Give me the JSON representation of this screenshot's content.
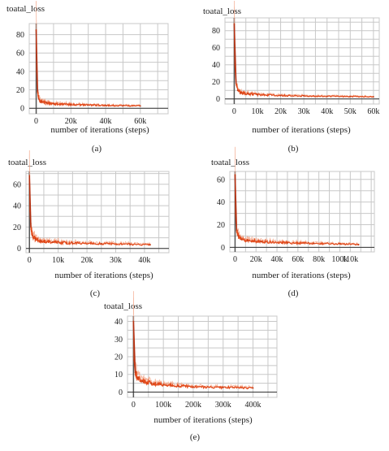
{
  "chart_data": [
    {
      "type": "line",
      "caption": "(a)",
      "title": "toatal_loss",
      "xlabel": "number of iterations (steps)",
      "ylabel": "",
      "xlim": [
        -4000,
        76000
      ],
      "ylim": [
        -6,
        92
      ],
      "xticks": [
        0,
        20000,
        40000,
        60000
      ],
      "xtick_labels": [
        "0",
        "20k",
        "40k",
        "60k"
      ],
      "yticks": [
        0,
        20,
        40,
        60,
        80
      ],
      "ytick_labels": [
        "0",
        "20",
        "40",
        "60",
        "80"
      ],
      "xgrid": [
        0,
        10000,
        20000,
        30000,
        40000,
        50000,
        60000,
        70000
      ],
      "ygrid": [
        0,
        10,
        20,
        30,
        40,
        50,
        60,
        70,
        80
      ],
      "series": [
        {
          "x": [
            0,
            300,
            800,
            1500,
            3000,
            6000,
            10000,
            20000,
            30000,
            40000,
            50000,
            60000
          ],
          "values": [
            85,
            40,
            18,
            10,
            7,
            6,
            5,
            4,
            3.5,
            3,
            2.8,
            2.5
          ]
        }
      ]
    },
    {
      "type": "line",
      "caption": "(b)",
      "title": "toatal_loss",
      "xlabel": "number of iterations (steps)",
      "ylabel": "",
      "xlim": [
        -4000,
        62500
      ],
      "ylim": [
        -6,
        95
      ],
      "xticks": [
        0,
        10000,
        20000,
        30000,
        40000,
        50000,
        60000
      ],
      "xtick_labels": [
        "0",
        "10k",
        "20k",
        "30k",
        "40k",
        "50k",
        "60k"
      ],
      "yticks": [
        0,
        20,
        40,
        60,
        80
      ],
      "ytick_labels": [
        "0",
        "20",
        "40",
        "60",
        "80"
      ],
      "xgrid": [
        0,
        5000,
        10000,
        15000,
        20000,
        25000,
        30000,
        35000,
        40000,
        45000,
        50000,
        55000,
        60000
      ],
      "ygrid": [
        0,
        10,
        20,
        30,
        40,
        50,
        60,
        70,
        80,
        90
      ],
      "series": [
        {
          "x": [
            0,
            300,
            800,
            1500,
            3000,
            6000,
            10000,
            20000,
            30000,
            40000,
            50000,
            60000
          ],
          "values": [
            88,
            40,
            18,
            10,
            7,
            6,
            5,
            4,
            3.5,
            3,
            2.8,
            2.5
          ]
        }
      ]
    },
    {
      "type": "line",
      "caption": "(c)",
      "title": "toatal_loss",
      "xlabel": "number of iterations (steps)",
      "ylabel": "",
      "xlim": [
        -1200,
        48500
      ],
      "ylim": [
        -4,
        72
      ],
      "xticks": [
        0,
        10000,
        20000,
        30000,
        40000
      ],
      "xtick_labels": [
        "0",
        "10k",
        "20k",
        "30k",
        "40k"
      ],
      "yticks": [
        0,
        20,
        40,
        60
      ],
      "ytick_labels": [
        "0",
        "20",
        "40",
        "60"
      ],
      "xgrid": [
        0,
        5000,
        10000,
        15000,
        20000,
        25000,
        30000,
        35000,
        40000,
        45000
      ],
      "ygrid": [
        0,
        10,
        20,
        30,
        40,
        50,
        60,
        70
      ],
      "series": [
        {
          "x": [
            0,
            200,
            500,
            1000,
            2000,
            4000,
            8000,
            15000,
            25000,
            35000,
            42000
          ],
          "values": [
            68,
            35,
            20,
            12,
            9,
            7,
            6,
            5,
            4.5,
            4,
            3.5
          ]
        }
      ]
    },
    {
      "type": "line",
      "caption": "(d)",
      "title": "toatal_loss",
      "xlabel": "number of iterations (steps)",
      "ylabel": "",
      "xlim": [
        -5000,
        133000
      ],
      "ylim": [
        -4,
        67
      ],
      "xticks": [
        0,
        20000,
        40000,
        60000,
        80000,
        100000,
        110000
      ],
      "xtick_labels": [
        "0",
        "20k",
        "40k",
        "60k",
        "80k",
        "100k",
        "110k"
      ],
      "yticks": [
        0,
        20,
        40,
        60
      ],
      "ytick_labels": [
        "0",
        "20",
        "40",
        "60"
      ],
      "xgrid": [
        0,
        10000,
        20000,
        30000,
        40000,
        50000,
        60000,
        70000,
        80000,
        90000,
        100000,
        110000,
        120000,
        130000
      ],
      "ygrid": [
        0,
        10,
        20,
        30,
        40,
        50,
        60
      ],
      "series": [
        {
          "x": [
            0,
            500,
            1500,
            3000,
            6000,
            12000,
            25000,
            50000,
            75000,
            100000,
            118000
          ],
          "values": [
            64,
            30,
            15,
            10,
            7,
            6,
            5,
            4,
            3.5,
            3,
            2.5
          ]
        }
      ]
    },
    {
      "type": "line",
      "caption": "(e)",
      "title": "toatal_loss",
      "xlabel": "number of iterations (steps)",
      "ylabel": "",
      "xlim": [
        -20000,
        480000
      ],
      "ylim": [
        -3,
        43
      ],
      "xticks": [
        0,
        100000,
        200000,
        300000,
        400000
      ],
      "xtick_labels": [
        "0",
        "100k",
        "200k",
        "300k",
        "400k"
      ],
      "yticks": [
        0,
        10,
        20,
        30,
        40
      ],
      "ytick_labels": [
        "0",
        "10",
        "20",
        "30",
        "40"
      ],
      "xgrid": [
        0,
        50000,
        100000,
        150000,
        200000,
        250000,
        300000,
        350000,
        400000,
        450000
      ],
      "ygrid": [
        0,
        5,
        10,
        15,
        20,
        25,
        30,
        35,
        40
      ],
      "series": [
        {
          "x": [
            0,
            2000,
            6000,
            15000,
            30000,
            60000,
            100000,
            150000,
            200000,
            300000,
            400000
          ],
          "values": [
            40,
            18,
            11,
            8,
            6,
            5,
            4,
            3.5,
            3,
            2.6,
            2.3
          ]
        }
      ]
    }
  ]
}
